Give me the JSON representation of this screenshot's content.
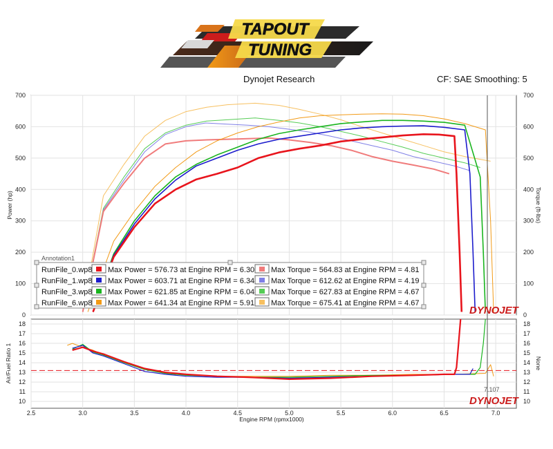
{
  "logo": {
    "line1": "TAPOUT",
    "line2": "TUNING"
  },
  "header": {
    "center": "Dynojet Research",
    "right": "CF: SAE Smoothing: 5"
  },
  "brand": "DYNOJET",
  "annotation": "Annotation1",
  "cursor_label": "7.107",
  "legend": [
    {
      "name": "RunFile_0.wp8",
      "color": "#e8141c",
      "power_text": "Max Power = 576.73 at Engine RPM = 6.30",
      "torque_color": "#f07b7b",
      "torque_text": "Max Torque = 564.83 at Engine RPM = 4.81"
    },
    {
      "name": "RunFile_1.wp8",
      "color": "#1c1ccc",
      "power_text": "Max Power = 603.71 at Engine RPM = 6.34",
      "torque_color": "#7f7fe6",
      "torque_text": "Max Torque = 612.62 at Engine RPM = 4.19"
    },
    {
      "name": "RunFile_3.wp8",
      "color": "#19b41e",
      "power_text": "Max Power = 621.85 at Engine RPM = 6.04",
      "torque_color": "#55cc55",
      "torque_text": "Max Torque = 627.83 at Engine RPM = 4.67"
    },
    {
      "name": "RunFile_6.wp8",
      "color": "#f29a16",
      "power_text": "Max Power = 641.34 at Engine RPM = 5.91",
      "torque_color": "#f7c060",
      "torque_text": "Max Torque = 675.41 at Engine RPM = 4.67"
    }
  ],
  "chart_data": [
    {
      "type": "line",
      "ylabel": "Power (hp)",
      "ylabel_right": "Torque (ft-lbs)",
      "xlim": [
        2.5,
        7.2
      ],
      "ylim": [
        0,
        700
      ],
      "y_ticks": [
        "0",
        "100",
        "200",
        "300",
        "400",
        "500",
        "600",
        "700"
      ],
      "grid": true,
      "series": [
        {
          "name": "RunFile_0.wp8",
          "kind": "power",
          "color": "#e8141c",
          "width": 2.6,
          "x": [
            3.1,
            3.3,
            3.5,
            3.7,
            3.9,
            4.1,
            4.3,
            4.5,
            4.7,
            4.9,
            5.1,
            5.3,
            5.5,
            5.7,
            5.9,
            6.1,
            6.3,
            6.45,
            6.6,
            6.62,
            6.65,
            6.67
          ],
          "y": [
            10,
            185,
            280,
            355,
            400,
            432,
            450,
            470,
            500,
            518,
            530,
            540,
            553,
            560,
            566,
            572,
            576,
            575,
            570,
            450,
            200,
            10
          ]
        },
        {
          "name": "RunFile_1.wp8",
          "kind": "power",
          "color": "#1c1ccc",
          "width": 1.6,
          "x": [
            3.1,
            3.3,
            3.5,
            3.7,
            3.9,
            4.1,
            4.3,
            4.5,
            4.7,
            4.9,
            5.1,
            5.3,
            5.5,
            5.7,
            5.9,
            6.1,
            6.3,
            6.5,
            6.7,
            6.75,
            6.78,
            6.8
          ],
          "y": [
            10,
            190,
            290,
            370,
            430,
            475,
            500,
            525,
            545,
            560,
            570,
            580,
            590,
            596,
            600,
            602,
            603,
            598,
            590,
            450,
            200,
            10
          ]
        },
        {
          "name": "RunFile_3.wp8",
          "kind": "power",
          "color": "#19b41e",
          "width": 1.6,
          "x": [
            3.1,
            3.3,
            3.5,
            3.7,
            3.9,
            4.1,
            4.3,
            4.5,
            4.7,
            4.9,
            5.1,
            5.3,
            5.5,
            5.7,
            5.9,
            6.1,
            6.3,
            6.5,
            6.7,
            6.85,
            6.88,
            6.9
          ],
          "y": [
            10,
            195,
            300,
            380,
            440,
            480,
            510,
            535,
            560,
            578,
            590,
            600,
            610,
            615,
            620,
            620,
            618,
            614,
            605,
            440,
            200,
            10
          ]
        },
        {
          "name": "RunFile_6.wp8",
          "kind": "power",
          "color": "#f29a16",
          "width": 1.0,
          "x": [
            3.05,
            3.3,
            3.5,
            3.7,
            3.9,
            4.1,
            4.3,
            4.5,
            4.7,
            4.9,
            5.1,
            5.3,
            5.5,
            5.7,
            5.9,
            6.1,
            6.3,
            6.5,
            6.7,
            6.9,
            6.95,
            6.98
          ],
          "y": [
            10,
            235,
            330,
            410,
            470,
            520,
            555,
            580,
            600,
            615,
            628,
            635,
            638,
            640,
            641,
            640,
            635,
            625,
            610,
            590,
            300,
            10
          ]
        },
        {
          "name": "RunFile_0.wp8",
          "kind": "torque",
          "color": "#f07b7b",
          "width": 2.0,
          "x": [
            3.0,
            3.2,
            3.4,
            3.6,
            3.8,
            4.0,
            4.2,
            4.4,
            4.6,
            4.8,
            5.0,
            5.2,
            5.4,
            5.6,
            5.8,
            6.0,
            6.2,
            6.4,
            6.55
          ],
          "y": [
            10,
            330,
            420,
            500,
            545,
            555,
            558,
            560,
            562,
            564,
            558,
            550,
            540,
            525,
            505,
            490,
            478,
            465,
            450
          ]
        },
        {
          "name": "RunFile_1.wp8",
          "kind": "torque",
          "color": "#7f7fe6",
          "width": 1.0,
          "x": [
            3.0,
            3.2,
            3.4,
            3.6,
            3.8,
            4.0,
            4.19,
            4.4,
            4.6,
            4.8,
            5.0,
            5.2,
            5.4,
            5.6,
            5.8,
            6.0,
            6.2,
            6.4,
            6.6,
            6.75
          ],
          "y": [
            10,
            335,
            430,
            520,
            575,
            600,
            612,
            608,
            605,
            600,
            592,
            583,
            570,
            555,
            540,
            525,
            505,
            490,
            475,
            460
          ]
        },
        {
          "name": "RunFile_3.wp8",
          "kind": "torque",
          "color": "#55cc55",
          "width": 1.0,
          "x": [
            3.0,
            3.2,
            3.4,
            3.6,
            3.8,
            4.0,
            4.2,
            4.4,
            4.67,
            4.9,
            5.1,
            5.3,
            5.5,
            5.7,
            5.9,
            6.1,
            6.3,
            6.5,
            6.7,
            6.85
          ],
          "y": [
            10,
            340,
            440,
            530,
            580,
            605,
            618,
            622,
            628,
            620,
            612,
            600,
            585,
            570,
            552,
            535,
            515,
            500,
            485,
            470
          ]
        },
        {
          "name": "RunFile_6.wp8",
          "kind": "torque",
          "color": "#f7c060",
          "width": 1.0,
          "x": [
            3.0,
            3.2,
            3.4,
            3.6,
            3.8,
            4.0,
            4.2,
            4.4,
            4.67,
            4.9,
            5.1,
            5.3,
            5.5,
            5.7,
            5.9,
            6.1,
            6.3,
            6.5,
            6.7,
            6.95
          ],
          "y": [
            10,
            380,
            480,
            570,
            620,
            648,
            662,
            670,
            675,
            668,
            655,
            640,
            622,
            600,
            580,
            560,
            540,
            520,
            505,
            490
          ]
        }
      ]
    },
    {
      "type": "line",
      "xlabel": "Engine RPM (rpmx1000)",
      "ylabel": "Air/Fuel Ratio 1",
      "ylabel_right": "None",
      "xlim": [
        2.5,
        7.2
      ],
      "ylim": [
        9.3,
        18.5
      ],
      "x_ticks": [
        "2.5",
        "3.0",
        "3.5",
        "4.0",
        "4.5",
        "5.0",
        "5.5",
        "6.0",
        "6.5",
        "7.0"
      ],
      "y_ticks": [
        "10",
        "11",
        "12",
        "13",
        "14",
        "15",
        "16",
        "17",
        "18"
      ],
      "reference_y": 13.2,
      "grid": true,
      "series": [
        {
          "name": "RunFile_0.wp8",
          "color": "#e8141c",
          "width": 2.2,
          "x": [
            2.9,
            3.0,
            3.1,
            3.2,
            3.4,
            3.6,
            3.8,
            4.0,
            4.3,
            4.6,
            5.0,
            5.4,
            5.8,
            6.2,
            6.5,
            6.6,
            6.62,
            6.64,
            6.66
          ],
          "y": [
            15.3,
            15.6,
            15.2,
            14.9,
            14.1,
            13.4,
            13.0,
            12.8,
            12.6,
            12.5,
            12.3,
            12.4,
            12.6,
            12.7,
            12.8,
            12.8,
            13.5,
            16.0,
            18.5
          ]
        },
        {
          "name": "RunFile_1.wp8",
          "color": "#1c1ccc",
          "width": 1.2,
          "x": [
            2.9,
            3.0,
            3.1,
            3.2,
            3.4,
            3.6,
            3.8,
            4.0,
            4.3,
            4.6,
            5.0,
            5.4,
            5.8,
            6.2,
            6.6,
            6.75,
            6.78
          ],
          "y": [
            15.5,
            15.8,
            15.0,
            14.7,
            13.9,
            13.1,
            12.8,
            12.6,
            12.5,
            12.5,
            12.4,
            12.5,
            12.6,
            12.7,
            12.8,
            12.8,
            13.4
          ]
        },
        {
          "name": "RunFile_3.wp8",
          "color": "#19b41e",
          "width": 1.2,
          "x": [
            2.9,
            3.0,
            3.1,
            3.2,
            3.4,
            3.6,
            3.8,
            4.0,
            4.3,
            4.6,
            5.0,
            5.4,
            5.8,
            6.2,
            6.6,
            6.8,
            6.85,
            6.88,
            6.9
          ],
          "y": [
            15.4,
            15.9,
            15.1,
            14.8,
            14.0,
            13.3,
            12.9,
            12.7,
            12.6,
            12.5,
            12.5,
            12.6,
            12.7,
            12.7,
            12.8,
            12.8,
            13.5,
            16.0,
            18.5
          ]
        },
        {
          "name": "RunFile_6.wp8",
          "color": "#f29a16",
          "width": 1.0,
          "x": [
            2.85,
            2.9,
            3.0,
            3.1,
            3.2,
            3.4,
            3.6,
            3.8,
            4.0,
            4.3,
            4.6,
            5.0,
            5.4,
            5.8,
            6.2,
            6.6,
            6.9,
            6.95,
            6.98
          ],
          "y": [
            15.8,
            16.0,
            15.6,
            15.3,
            14.8,
            14.1,
            13.4,
            13.0,
            12.7,
            12.6,
            12.6,
            12.6,
            12.7,
            12.7,
            12.8,
            12.8,
            12.9,
            13.8,
            12.6
          ]
        }
      ]
    }
  ]
}
